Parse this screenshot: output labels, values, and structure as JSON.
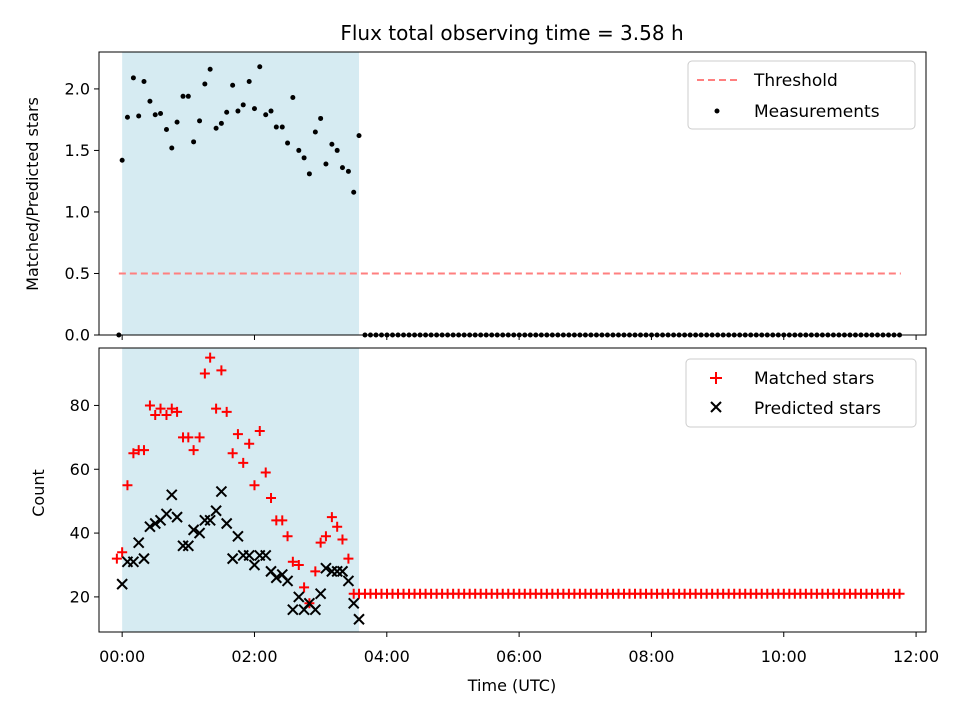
{
  "chart_data": [
    {
      "type": "scatter",
      "title": "Flux total observing time = 3.58 h",
      "ylabel": "Matched/Predicted stars",
      "xlabel": "",
      "ylim": [
        0,
        2.3
      ],
      "xlim": [
        -0.35,
        12.15
      ],
      "yticks": [
        0.0,
        0.5,
        1.0,
        1.5,
        2.0
      ],
      "ytick_labels": [
        "0.0",
        "0.5",
        "1.0",
        "1.5",
        "2.0"
      ],
      "legend_position": "top-right",
      "legend": [
        "Threshold",
        "Measurements"
      ],
      "shaded_span": {
        "x0": 0.0,
        "x1": 3.58,
        "color": "#add8e6"
      },
      "threshold": {
        "name": "Threshold",
        "y": 0.5,
        "x0": -0.05,
        "x1": 11.77,
        "color": "#ff7f7f",
        "style": "dashed"
      },
      "series": [
        {
          "name": "Measurements",
          "color": "#000000",
          "marker": "dot",
          "points": [
            [
              -0.05,
              0.0
            ],
            [
              0.0,
              1.42
            ],
            [
              0.08,
              1.77
            ],
            [
              0.17,
              2.09
            ],
            [
              0.25,
              1.78
            ],
            [
              0.33,
              2.06
            ],
            [
              0.42,
              1.9
            ],
            [
              0.5,
              1.79
            ],
            [
              0.58,
              1.8
            ],
            [
              0.67,
              1.67
            ],
            [
              0.75,
              1.52
            ],
            [
              0.83,
              1.73
            ],
            [
              0.92,
              1.94
            ],
            [
              1.0,
              1.94
            ],
            [
              1.08,
              1.57
            ],
            [
              1.17,
              1.74
            ],
            [
              1.25,
              2.04
            ],
            [
              1.33,
              2.16
            ],
            [
              1.42,
              1.68
            ],
            [
              1.5,
              1.72
            ],
            [
              1.58,
              1.81
            ],
            [
              1.67,
              2.03
            ],
            [
              1.75,
              1.82
            ],
            [
              1.83,
              1.87
            ],
            [
              1.92,
              2.06
            ],
            [
              2.0,
              1.84
            ],
            [
              2.08,
              2.18
            ],
            [
              2.17,
              1.79
            ],
            [
              2.25,
              1.82
            ],
            [
              2.33,
              1.69
            ],
            [
              2.42,
              1.69
            ],
            [
              2.5,
              1.56
            ],
            [
              2.58,
              1.93
            ],
            [
              2.67,
              1.5
            ],
            [
              2.75,
              1.44
            ],
            [
              2.83,
              1.31
            ],
            [
              2.92,
              1.65
            ],
            [
              3.0,
              1.76
            ],
            [
              3.08,
              1.39
            ],
            [
              3.17,
              1.55
            ],
            [
              3.25,
              1.5
            ],
            [
              3.33,
              1.36
            ],
            [
              3.42,
              1.33
            ],
            [
              3.5,
              1.16
            ],
            [
              3.58,
              1.62
            ]
          ],
          "zero_run": {
            "x0": 3.67,
            "x1": 11.77,
            "step": 0.0833,
            "y": 0.0
          }
        }
      ]
    },
    {
      "type": "scatter",
      "title": "",
      "xlabel": "Time (UTC)",
      "ylabel": "Count",
      "ylim": [
        9,
        98
      ],
      "xlim": [
        -0.35,
        12.15
      ],
      "yticks": [
        20,
        40,
        60,
        80
      ],
      "ytick_labels": [
        "20",
        "40",
        "60",
        "80"
      ],
      "xticks": [
        0,
        2,
        4,
        6,
        8,
        10,
        12
      ],
      "xtick_labels": [
        "00:00",
        "02:00",
        "04:00",
        "06:00",
        "08:00",
        "10:00",
        "12:00"
      ],
      "legend_position": "top-right",
      "legend": [
        "Matched stars",
        "Predicted stars"
      ],
      "shaded_span": {
        "x0": 0.0,
        "x1": 3.58,
        "color": "#add8e6"
      },
      "series": [
        {
          "name": "Matched stars",
          "color": "#ff0000",
          "marker": "plus",
          "points": [
            [
              -0.08,
              32
            ],
            [
              0.0,
              34
            ],
            [
              0.08,
              55
            ],
            [
              0.17,
              65
            ],
            [
              0.25,
              66
            ],
            [
              0.33,
              66
            ],
            [
              0.42,
              80
            ],
            [
              0.5,
              77
            ],
            [
              0.58,
              79
            ],
            [
              0.67,
              77
            ],
            [
              0.75,
              79
            ],
            [
              0.83,
              78
            ],
            [
              0.92,
              70
            ],
            [
              1.0,
              70
            ],
            [
              1.08,
              66
            ],
            [
              1.17,
              70
            ],
            [
              1.25,
              90
            ],
            [
              1.33,
              95
            ],
            [
              1.42,
              79
            ],
            [
              1.5,
              91
            ],
            [
              1.58,
              78
            ],
            [
              1.67,
              65
            ],
            [
              1.75,
              71
            ],
            [
              1.83,
              62
            ],
            [
              1.92,
              68
            ],
            [
              2.0,
              55
            ],
            [
              2.08,
              72
            ],
            [
              2.17,
              59
            ],
            [
              2.25,
              51
            ],
            [
              2.33,
              44
            ],
            [
              2.42,
              44
            ],
            [
              2.5,
              39
            ],
            [
              2.58,
              31
            ],
            [
              2.67,
              30
            ],
            [
              2.75,
              23
            ],
            [
              2.83,
              18
            ],
            [
              2.92,
              28
            ],
            [
              3.0,
              37
            ],
            [
              3.08,
              39
            ],
            [
              3.17,
              45
            ],
            [
              3.25,
              42
            ],
            [
              3.33,
              38
            ],
            [
              3.42,
              32
            ],
            [
              3.5,
              21
            ],
            [
              3.58,
              21
            ]
          ],
          "flat_run": {
            "x0": 3.67,
            "x1": 11.77,
            "step": 0.0833,
            "y": 21
          }
        },
        {
          "name": "Predicted stars",
          "color": "#000000",
          "marker": "x",
          "points": [
            [
              0.0,
              24
            ],
            [
              0.08,
              31
            ],
            [
              0.17,
              31
            ],
            [
              0.25,
              37
            ],
            [
              0.33,
              32
            ],
            [
              0.42,
              42
            ],
            [
              0.5,
              43
            ],
            [
              0.58,
              44
            ],
            [
              0.67,
              46
            ],
            [
              0.75,
              52
            ],
            [
              0.83,
              45
            ],
            [
              0.92,
              36
            ],
            [
              1.0,
              36
            ],
            [
              1.08,
              41
            ],
            [
              1.17,
              40
            ],
            [
              1.25,
              44
            ],
            [
              1.33,
              44
            ],
            [
              1.42,
              47
            ],
            [
              1.5,
              53
            ],
            [
              1.58,
              43
            ],
            [
              1.67,
              32
            ],
            [
              1.75,
              39
            ],
            [
              1.83,
              33
            ],
            [
              1.92,
              33
            ],
            [
              2.0,
              30
            ],
            [
              2.08,
              33
            ],
            [
              2.17,
              33
            ],
            [
              2.25,
              28
            ],
            [
              2.33,
              26
            ],
            [
              2.42,
              27
            ],
            [
              2.5,
              25
            ],
            [
              2.58,
              16
            ],
            [
              2.67,
              20
            ],
            [
              2.75,
              16
            ],
            [
              2.83,
              18
            ],
            [
              2.92,
              16
            ],
            [
              3.0,
              21
            ],
            [
              3.08,
              29
            ],
            [
              3.17,
              28
            ],
            [
              3.25,
              28
            ],
            [
              3.33,
              28
            ],
            [
              3.42,
              25
            ],
            [
              3.5,
              18
            ],
            [
              3.58,
              13
            ]
          ]
        }
      ]
    }
  ]
}
